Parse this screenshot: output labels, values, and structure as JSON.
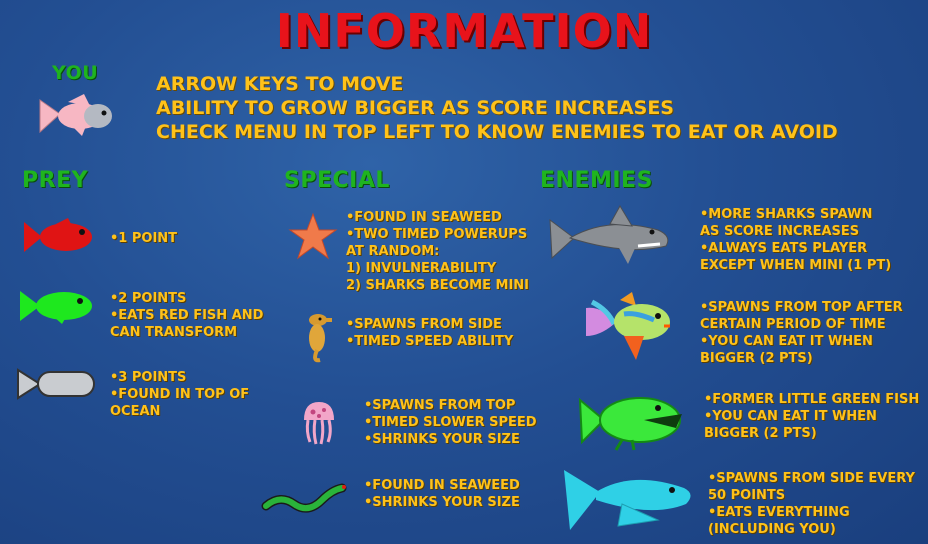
{
  "title": "INFORMATION",
  "you": {
    "heading": "YOU",
    "lines": [
      "ARROW KEYS TO MOVE",
      "ABILITY TO GROW BIGGER AS SCORE INCREASES",
      "CHECK MENU IN TOP LEFT TO KNOW ENEMIES TO EAT OR AVOID"
    ]
  },
  "prey": {
    "heading": "PREY",
    "items": [
      {
        "icon": "red-fish-icon",
        "lines": [
          "•1 POINT"
        ]
      },
      {
        "icon": "green-fish-icon",
        "lines": [
          "•2 POINTS",
          "•EATS RED FISH AND",
          "CAN TRANSFORM"
        ]
      },
      {
        "icon": "grey-fish-icon",
        "lines": [
          "•3 POINTS",
          "•FOUND IN TOP OF",
          "OCEAN"
        ]
      }
    ]
  },
  "special": {
    "heading": "SPECIAL",
    "items": [
      {
        "icon": "starfish-icon",
        "lines": [
          "•FOUND IN SEAWEED",
          "•TWO TIMED POWERUPS",
          "AT RANDOM:",
          "1) INVULNERABILITY",
          "2) SHARKS BECOME MINI"
        ]
      },
      {
        "icon": "seahorse-icon",
        "lines": [
          "•SPAWNS FROM SIDE",
          "•TIMED SPEED ABILITY"
        ]
      },
      {
        "icon": "jellyfish-icon",
        "lines": [
          "•SPAWNS FROM TOP",
          "•TIMED SLOWER SPEED",
          "•SHRINKS YOUR SIZE"
        ]
      },
      {
        "icon": "eel-icon",
        "lines": [
          "•FOUND IN SEAWEED",
          "•SHRINKS YOUR SIZE"
        ]
      }
    ]
  },
  "enemies": {
    "heading": "ENEMIES",
    "items": [
      {
        "icon": "shark-icon",
        "lines": [
          "•MORE SHARKS SPAWN",
          "AS SCORE INCREASES",
          "•ALWAYS EATS PLAYER",
          "EXCEPT WHEN MINI (1 PT)"
        ]
      },
      {
        "icon": "tropical-fish-icon",
        "lines": [
          "•SPAWNS FROM TOP AFTER",
          "CERTAIN PERIOD OF TIME",
          "•YOU CAN EAT IT WHEN",
          "BIGGER (2 PTS)"
        ]
      },
      {
        "icon": "big-green-fish-icon",
        "lines": [
          "•FORMER LITTLE GREEN FISH",
          "•YOU CAN EAT IT WHEN",
          "BIGGER (2 PTS)"
        ]
      },
      {
        "icon": "blue-fish-icon",
        "lines": [
          "•SPAWNS FROM SIDE EVERY",
          "50 POINTS",
          "•EATS EVERYTHING",
          "(INCLUDING YOU)"
        ]
      }
    ]
  },
  "colors": {
    "background": "#234f93",
    "title": "#e8131b",
    "heading": "#1fb41f",
    "text": "#ffc21a"
  }
}
